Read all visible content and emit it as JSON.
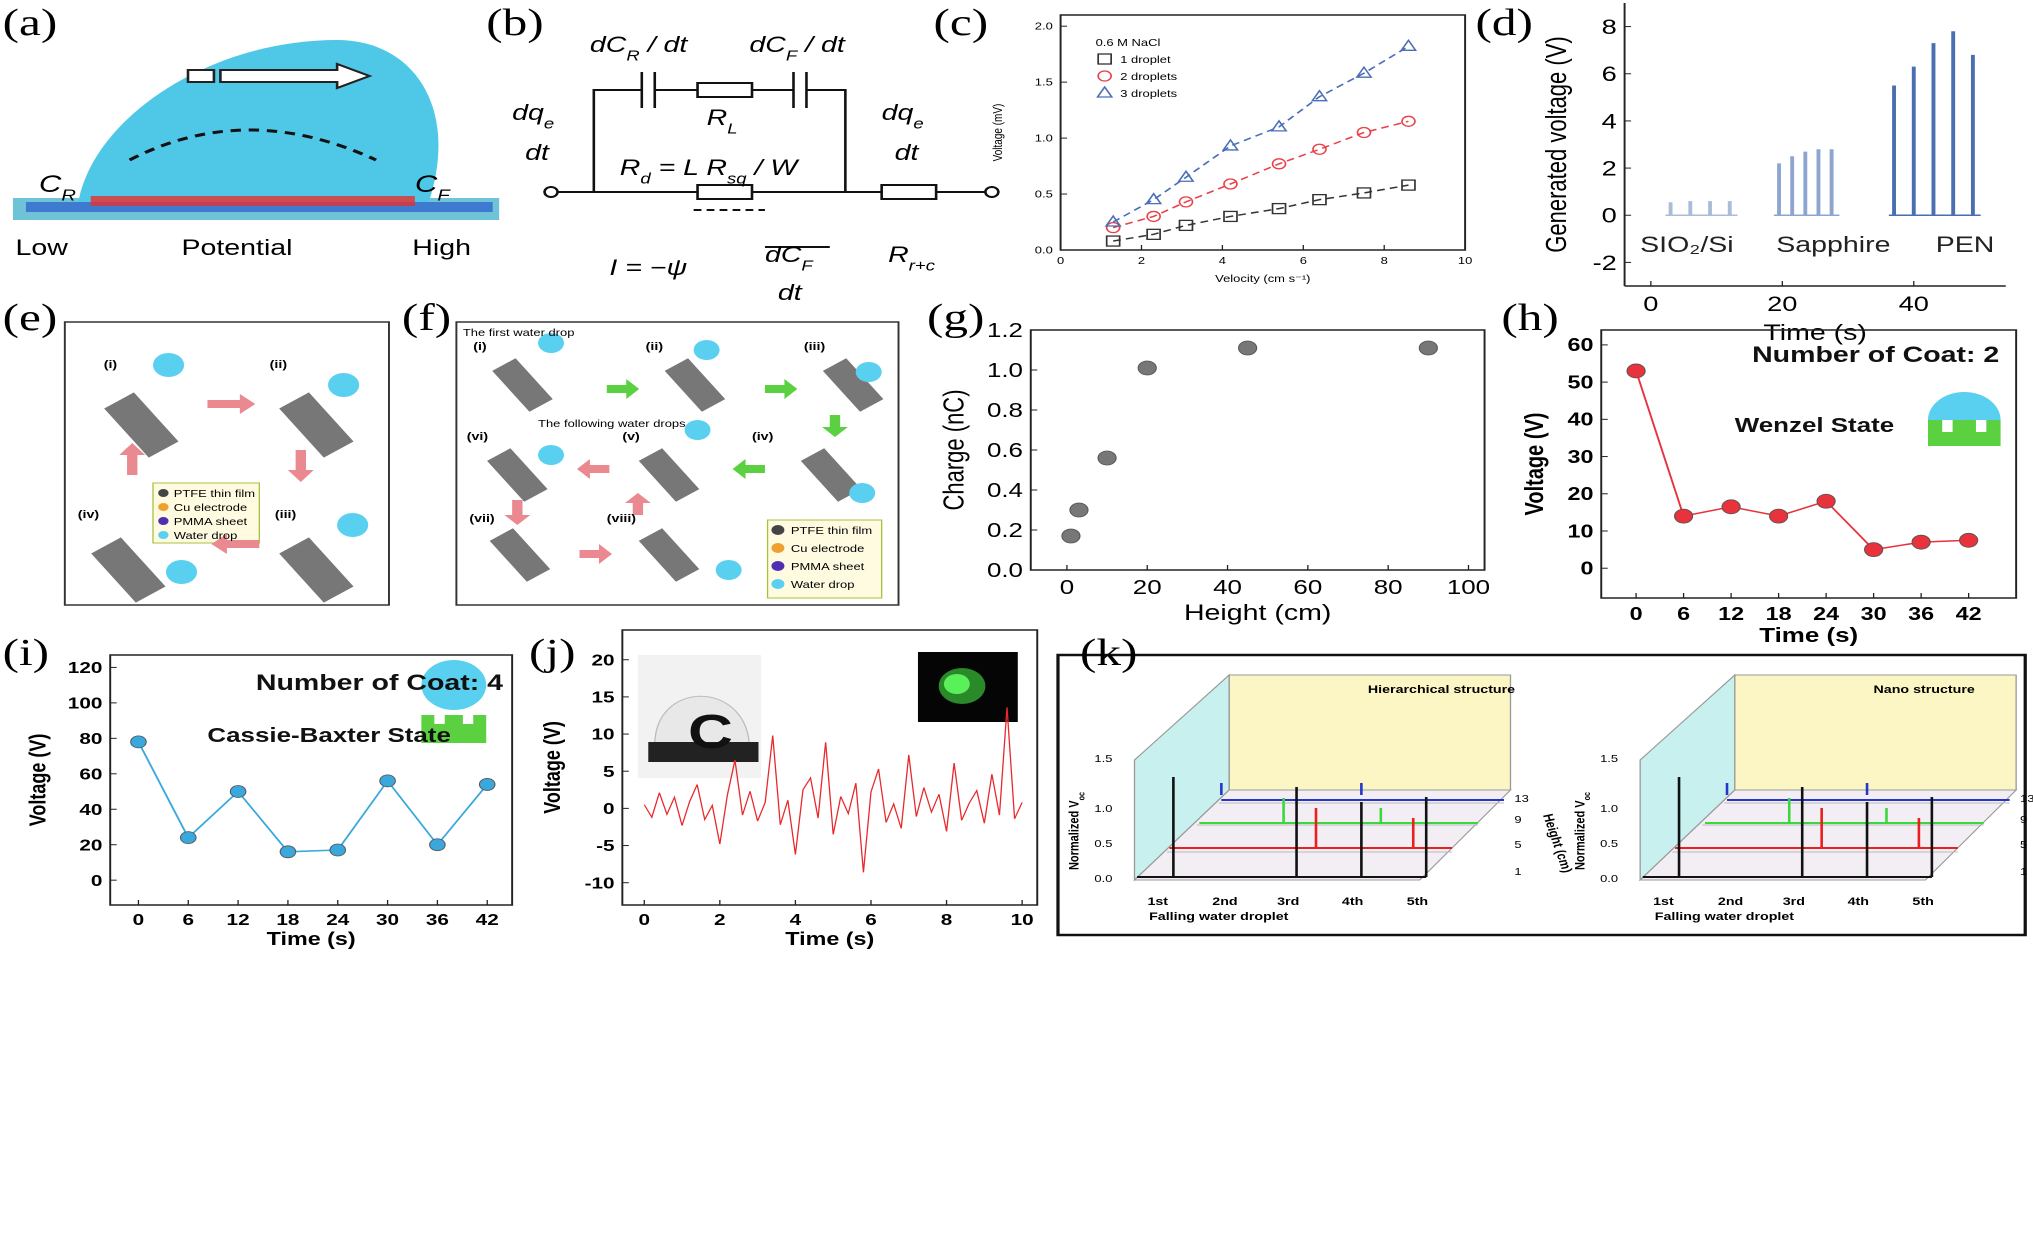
{
  "panel_labels": [
    "(a)",
    "(b)",
    "(c)",
    "(d)",
    "(e)",
    "(f)",
    "(g)",
    "(h)",
    "(i)",
    "(j)",
    "(k)"
  ],
  "panel_a": {
    "left": [
      "C",
      "R"
    ],
    "right": [
      "C",
      "F"
    ],
    "low": "Low",
    "middle": "Potential",
    "high": "High"
  },
  "panel_b": {
    "labels": [
      [
        "dC",
        "R",
        " / dt"
      ],
      [
        "dC",
        "F",
        " / dt"
      ],
      [
        "R",
        "L"
      ],
      [
        "R",
        "d",
        " = L R",
        "sq",
        " / W"
      ],
      [
        "I = −ψ"
      ],
      [
        "dC",
        "F"
      ],
      [
        "dt"
      ],
      [
        "dq",
        "e"
      ],
      [
        "dt"
      ],
      [
        "dq",
        "e"
      ],
      [
        "dt"
      ],
      [
        "R",
        "r+c"
      ]
    ]
  },
  "panel_e": {
    "steps": [
      "(i)",
      "(ii)",
      "(iii)",
      "(iv)"
    ],
    "legend": [
      "PTFE thin film",
      "Cu electrode",
      "PMMA sheet",
      "Water drop"
    ]
  },
  "panel_f": {
    "header": "The first water drop",
    "middle": "The following water drops",
    "steps": [
      "(i)",
      "(ii)",
      "(iii)",
      "(iv)",
      "(v)",
      "(vi)",
      "(vii)",
      "(viii)"
    ],
    "legend": [
      "PTFE thin film",
      "Cu electrode",
      "PMMA sheet",
      "Water drop"
    ]
  },
  "panel_k": {
    "plots": [
      {
        "title": "Hierarchical structure"
      },
      {
        "title": "Nano structure"
      }
    ],
    "y_label": [
      "Normalized V",
      "oc"
    ],
    "x_label": "Falling water droplet",
    "z_label": "Height (cm)",
    "yticks": [
      "0.0",
      "0.5",
      "1.0",
      "1.5"
    ],
    "xticks": [
      "1st",
      "2nd",
      "3rd",
      "4th",
      "5th"
    ],
    "zticks": [
      "1",
      "5",
      "9",
      "13"
    ]
  },
  "chart_data": [
    {
      "type": "scatter",
      "x_label": "Velocity (cm s⁻¹)",
      "y_label": "Voltage (mV)",
      "legend_title": "0.6 M NaCl",
      "hollow": true,
      "line_style": "dashed",
      "x": [
        1.3,
        2.3,
        3.1,
        4.2,
        5.4,
        6.4,
        7.5,
        8.6
      ],
      "series": [
        {
          "name": "1 droplet",
          "color": "#333333",
          "marker": "square",
          "values": [
            0.08,
            0.14,
            0.22,
            0.3,
            0.37,
            0.45,
            0.51,
            0.58
          ]
        },
        {
          "name": "2 droplets",
          "color": "#e8424a",
          "marker": "circle",
          "values": [
            0.2,
            0.3,
            0.43,
            0.59,
            0.77,
            0.9,
            1.05,
            1.15
          ]
        },
        {
          "name": "3 droplets",
          "color": "#4a6fb8",
          "marker": "triangle",
          "values": [
            0.25,
            0.45,
            0.65,
            0.93,
            1.1,
            1.37,
            1.58,
            1.82
          ]
        }
      ],
      "xlim": [
        0,
        10
      ],
      "xticks": [
        0,
        2,
        4,
        6,
        8,
        10
      ],
      "ylim": [
        0,
        2.1
      ],
      "yticks": [
        {
          "value": 0,
          "label": "0.0"
        },
        0.5,
        {
          "value": 1,
          "label": "1.0"
        },
        1.5,
        {
          "value": 2,
          "label": "2.0"
        }
      ]
    },
    {
      "type": "stem",
      "x_label": "Time (s)",
      "y_label": "Generated voltage (V)",
      "annotations": [
        "SIO₂/Si",
        "Sapphire",
        "PEN"
      ],
      "series": [
        {
          "color": "#a9bcd8",
          "x": [
            3,
            6,
            9,
            12
          ],
          "values": [
            0.55,
            0.6,
            0.6,
            0.6
          ]
        },
        {
          "color": "#8ea6cf",
          "x": [
            19.5,
            21.5,
            23.5,
            25.5,
            27.5
          ],
          "values": [
            2.2,
            2.5,
            2.7,
            2.8,
            2.8
          ]
        },
        {
          "color": "#4a6fb0",
          "x": [
            37,
            40,
            43,
            46,
            49
          ],
          "values": [
            5.5,
            6.3,
            7.3,
            7.8,
            6.8
          ]
        }
      ],
      "xlim": [
        -4,
        54
      ],
      "xticks": [
        0,
        20,
        40
      ],
      "ylim": [
        -3,
        9
      ],
      "yticks": [
        -2,
        0,
        2,
        4,
        6,
        8
      ]
    },
    {
      "type": "scatter",
      "x_label": "Height (cm)",
      "y_label": "Charge (nC)",
      "x": [
        1,
        3,
        10,
        20,
        45,
        90
      ],
      "series": [
        {
          "color": "#777777",
          "marker": "circle",
          "values": [
            0.17,
            0.3,
            0.56,
            1.01,
            1.11,
            1.11
          ]
        }
      ],
      "xlim": [
        -9,
        104
      ],
      "xticks": [
        0,
        20,
        40,
        60,
        80,
        100
      ],
      "ylim": [
        0,
        1.2
      ],
      "yticks": [
        {
          "value": 0,
          "label": "0.0"
        },
        0.2,
        0.4,
        0.6,
        0.8,
        {
          "value": 1,
          "label": "1.0"
        },
        1.2
      ]
    },
    {
      "type": "line",
      "x_label": "Time (s)",
      "y_label": "Voltage (V)",
      "annotations": [
        "Number of Coat: 2",
        "Wenzel State"
      ],
      "x": [
        0,
        6,
        12,
        18,
        24,
        30,
        36,
        42
      ],
      "series": [
        {
          "color": "#e8323c",
          "marker": "circle",
          "values": [
            53,
            14,
            16.5,
            14,
            18,
            5,
            7,
            7.5
          ]
        }
      ],
      "xlim": [
        -4.4,
        48
      ],
      "xticks": [
        0,
        6,
        12,
        18,
        24,
        30,
        36,
        42
      ],
      "ylim": [
        -8,
        64
      ],
      "yticks": [
        0,
        10,
        20,
        30,
        40,
        50,
        60
      ]
    },
    {
      "type": "line",
      "x_label": "Time (s)",
      "y_label": "Voltage (V)",
      "annotations": [
        "Number of Coat: 4",
        "Cassie-Baxter State"
      ],
      "x": [
        0,
        6,
        12,
        18,
        24,
        30,
        36,
        42
      ],
      "series": [
        {
          "color": "#3aa8dc",
          "marker": "circle",
          "values": [
            78,
            24,
            50,
            16,
            17,
            56,
            20,
            54
          ]
        }
      ],
      "xlim": [
        -3.4,
        45
      ],
      "xticks": [
        0,
        6,
        12,
        18,
        24,
        30,
        36,
        42
      ],
      "ylim": [
        -14,
        127
      ],
      "yticks": [
        0,
        20,
        40,
        60,
        80,
        100,
        120
      ]
    },
    {
      "type": "line",
      "x_label": "Time (s)",
      "y_label": "Voltage (V)",
      "annotations": [
        "C"
      ],
      "x": [
        0,
        0.2,
        0.4,
        0.6,
        0.8,
        1,
        1.2,
        1.4,
        1.6,
        1.8,
        2,
        2.2,
        2.4,
        2.6,
        2.8,
        3,
        3.2,
        3.4,
        3.6,
        3.8,
        4,
        4.2,
        4.4,
        4.6,
        4.8,
        5,
        5.2,
        5.4,
        5.6,
        5.8,
        6,
        6.2,
        6.4,
        6.6,
        6.8,
        7,
        7.2,
        7.4,
        7.6,
        7.8,
        8,
        8.2,
        8.4,
        8.6,
        8.8,
        9,
        9.2,
        9.4,
        9.6,
        9.8,
        10
      ],
      "series": [
        {
          "color": "#e8282c",
          "values": [
            0.5,
            -1.2,
            2.1,
            -0.8,
            1.5,
            -2.3,
            0.9,
            3.2,
            -1.5,
            0.4,
            -4.8,
            1.8,
            6.5,
            -0.9,
            2.3,
            -1.7,
            0.8,
            9.8,
            -2.2,
            1.1,
            -6.2,
            2.5,
            4.1,
            -1.3,
            8.9,
            -3.5,
            1.6,
            -0.7,
            3.4,
            -8.6,
            2.2,
            5.3,
            -1.9,
            0.6,
            -2.7,
            7.2,
            -1.1,
            2.8,
            -0.5,
            1.9,
            -3.1,
            6.1,
            -1.6,
            0.7,
            2.4,
            -2.0,
            4.6,
            -0.9,
            13.6,
            -1.4,
            0.8
          ]
        }
      ],
      "xlim": [
        -0.58,
        10.4
      ],
      "xticks": [
        0,
        2,
        4,
        6,
        8,
        10
      ],
      "ylim": [
        -13,
        24
      ],
      "yticks": [
        -10,
        -5,
        0,
        5,
        10,
        15,
        20
      ]
    }
  ]
}
